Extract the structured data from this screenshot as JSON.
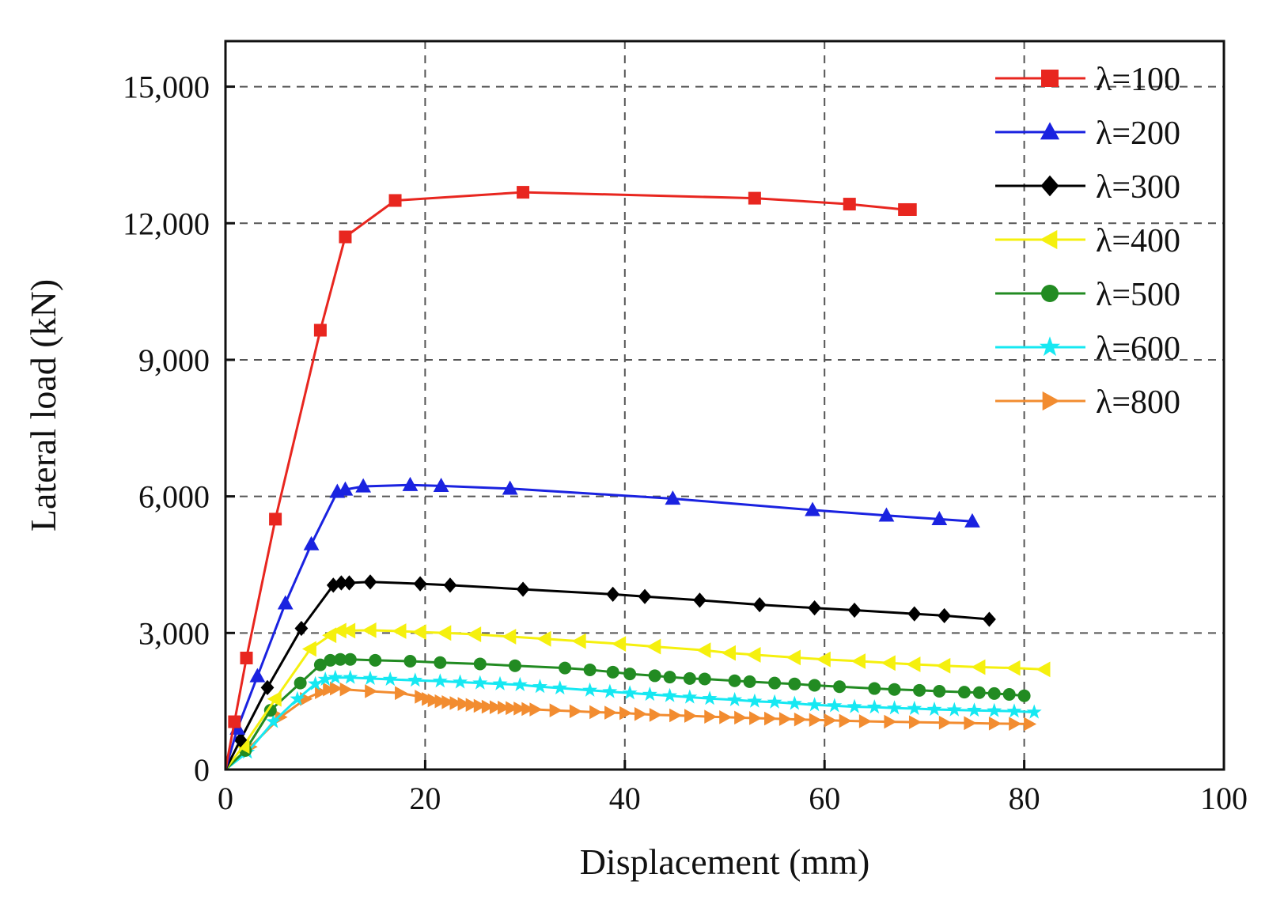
{
  "chart_data": {
    "type": "line",
    "title": "",
    "xlabel": "Displacement (mm)",
    "ylabel": "Lateral load (kN)",
    "xlim": [
      0,
      100
    ],
    "ylim": [
      0,
      16000
    ],
    "xticks": [
      0,
      20,
      40,
      60,
      80,
      100
    ],
    "xtick_labels": [
      "0",
      "20",
      "40",
      "60",
      "80",
      "100"
    ],
    "yticks": [
      0,
      3000,
      6000,
      9000,
      12000,
      15000
    ],
    "ytick_labels": [
      "0",
      "3,000",
      "6,000",
      "9,000",
      "12,000",
      "15,000"
    ],
    "grid": true,
    "legend_position": "top-right",
    "series": [
      {
        "name": "λ=100",
        "color": "#e8261f",
        "marker": "square",
        "x": [
          0,
          0.9,
          2.1,
          5.0,
          9.5,
          12.0,
          17.0,
          29.8,
          53.0,
          62.5,
          68.0,
          68.6
        ],
        "y": [
          0,
          1050,
          2450,
          5500,
          9650,
          11700,
          12500,
          12680,
          12550,
          12420,
          12300,
          12300
        ]
      },
      {
        "name": "λ=200",
        "color": "#1a22e0",
        "marker": "triangle-up",
        "x": [
          0,
          1.2,
          3.2,
          6.0,
          8.6,
          11.2,
          12.0,
          13.8,
          18.5,
          21.6,
          28.5,
          44.8,
          58.8,
          66.2,
          71.5,
          74.8
        ],
        "y": [
          0,
          900,
          2050,
          3650,
          4950,
          6100,
          6150,
          6220,
          6250,
          6230,
          6170,
          5950,
          5700,
          5580,
          5500,
          5450
        ]
      },
      {
        "name": "λ=300",
        "color": "#000000",
        "marker": "diamond",
        "x": [
          0,
          1.5,
          4.2,
          7.6,
          10.8,
          11.6,
          12.4,
          14.5,
          19.5,
          22.5,
          29.8,
          38.8,
          42.0,
          47.5,
          53.5,
          59.0,
          63.0,
          69.0,
          72.0,
          76.5
        ],
        "y": [
          0,
          650,
          1800,
          3100,
          4050,
          4100,
          4100,
          4120,
          4080,
          4050,
          3960,
          3850,
          3800,
          3720,
          3620,
          3550,
          3500,
          3420,
          3380,
          3300
        ]
      },
      {
        "name": "λ=400",
        "color": "#f5f00e",
        "marker": "triangle-left",
        "x": [
          0,
          1.8,
          5.0,
          8.5,
          10.5,
          11.5,
          12.4,
          14.5,
          17.5,
          19.5,
          22.0,
          25.0,
          28.5,
          32.0,
          35.5,
          39.5,
          43.0,
          48.0,
          50.5,
          53.0,
          57.0,
          60.0,
          63.5,
          66.5,
          69.0,
          72.0,
          75.5,
          79.0,
          82.0
        ],
        "y": [
          0,
          520,
          1550,
          2650,
          2950,
          3050,
          3050,
          3060,
          3040,
          3020,
          3000,
          2970,
          2920,
          2870,
          2820,
          2760,
          2700,
          2620,
          2560,
          2520,
          2460,
          2420,
          2380,
          2340,
          2310,
          2280,
          2250,
          2230,
          2200
        ]
      },
      {
        "name": "λ=500",
        "color": "#228b22",
        "marker": "circle",
        "x": [
          0,
          2.0,
          4.5,
          7.5,
          9.5,
          10.5,
          11.5,
          12.5,
          15.0,
          18.5,
          21.5,
          25.5,
          29.0,
          34.0,
          36.5,
          38.8,
          40.5,
          43.0,
          44.5,
          46.5,
          48.0,
          51.0,
          52.5,
          55.0,
          57.0,
          59.0,
          61.5,
          65.0,
          67.0,
          69.5,
          71.5,
          74.0,
          75.5,
          77.0,
          78.5,
          80.0
        ],
        "y": [
          0,
          420,
          1300,
          1900,
          2300,
          2400,
          2420,
          2420,
          2400,
          2380,
          2350,
          2320,
          2280,
          2230,
          2190,
          2140,
          2100,
          2060,
          2030,
          2000,
          1990,
          1950,
          1930,
          1900,
          1880,
          1850,
          1820,
          1780,
          1760,
          1740,
          1720,
          1700,
          1690,
          1670,
          1650,
          1620
        ]
      },
      {
        "name": "λ=600",
        "color": "#16e8f2",
        "marker": "star",
        "x": [
          0,
          2.2,
          4.8,
          7.2,
          9.0,
          10.0,
          11.0,
          12.5,
          14.5,
          16.5,
          19.0,
          21.5,
          23.5,
          25.5,
          27.5,
          29.5,
          31.5,
          33.5,
          36.5,
          38.5,
          40.5,
          42.5,
          44.5,
          46.5,
          48.5,
          51.0,
          53.0,
          55.0,
          57.0,
          59.0,
          61.0,
          63.0,
          65.0,
          67.0,
          69.0,
          71.0,
          73.0,
          75.0,
          77.0,
          79.0,
          81.0
        ],
        "y": [
          0,
          380,
          1050,
          1550,
          1880,
          1980,
          2020,
          2020,
          2000,
          1980,
          1960,
          1940,
          1920,
          1900,
          1880,
          1860,
          1820,
          1790,
          1740,
          1710,
          1680,
          1650,
          1620,
          1590,
          1560,
          1530,
          1500,
          1480,
          1450,
          1420,
          1400,
          1380,
          1370,
          1350,
          1340,
          1320,
          1310,
          1300,
          1290,
          1280,
          1260
        ]
      },
      {
        "name": "λ=800",
        "color": "#f28c30",
        "marker": "triangle-right",
        "x": [
          0,
          2.5,
          5.5,
          8.0,
          9.5,
          10.3,
          11.0,
          12.0,
          14.5,
          17.5,
          19.5,
          20.2,
          20.8,
          21.5,
          22.2,
          23.0,
          23.8,
          24.6,
          25.4,
          26.2,
          27.0,
          27.8,
          28.6,
          29.4,
          30.2,
          31.0,
          33.0,
          35.0,
          37.0,
          38.5,
          40.0,
          41.5,
          43.0,
          45.0,
          46.5,
          48.5,
          50.0,
          51.5,
          53.0,
          54.5,
          56.0,
          57.5,
          59.0,
          60.5,
          62.0,
          64.0,
          66.5,
          69.0,
          72.0,
          74.5,
          77.0,
          79.0,
          80.5
        ],
        "y": [
          0,
          500,
          1150,
          1550,
          1700,
          1760,
          1780,
          1760,
          1720,
          1680,
          1600,
          1550,
          1520,
          1500,
          1480,
          1460,
          1440,
          1420,
          1400,
          1380,
          1370,
          1360,
          1350,
          1340,
          1330,
          1320,
          1300,
          1280,
          1260,
          1250,
          1240,
          1220,
          1200,
          1190,
          1180,
          1160,
          1150,
          1140,
          1130,
          1120,
          1110,
          1100,
          1090,
          1080,
          1070,
          1060,
          1050,
          1040,
          1030,
          1020,
          1010,
          1005,
          1000
        ]
      }
    ]
  }
}
